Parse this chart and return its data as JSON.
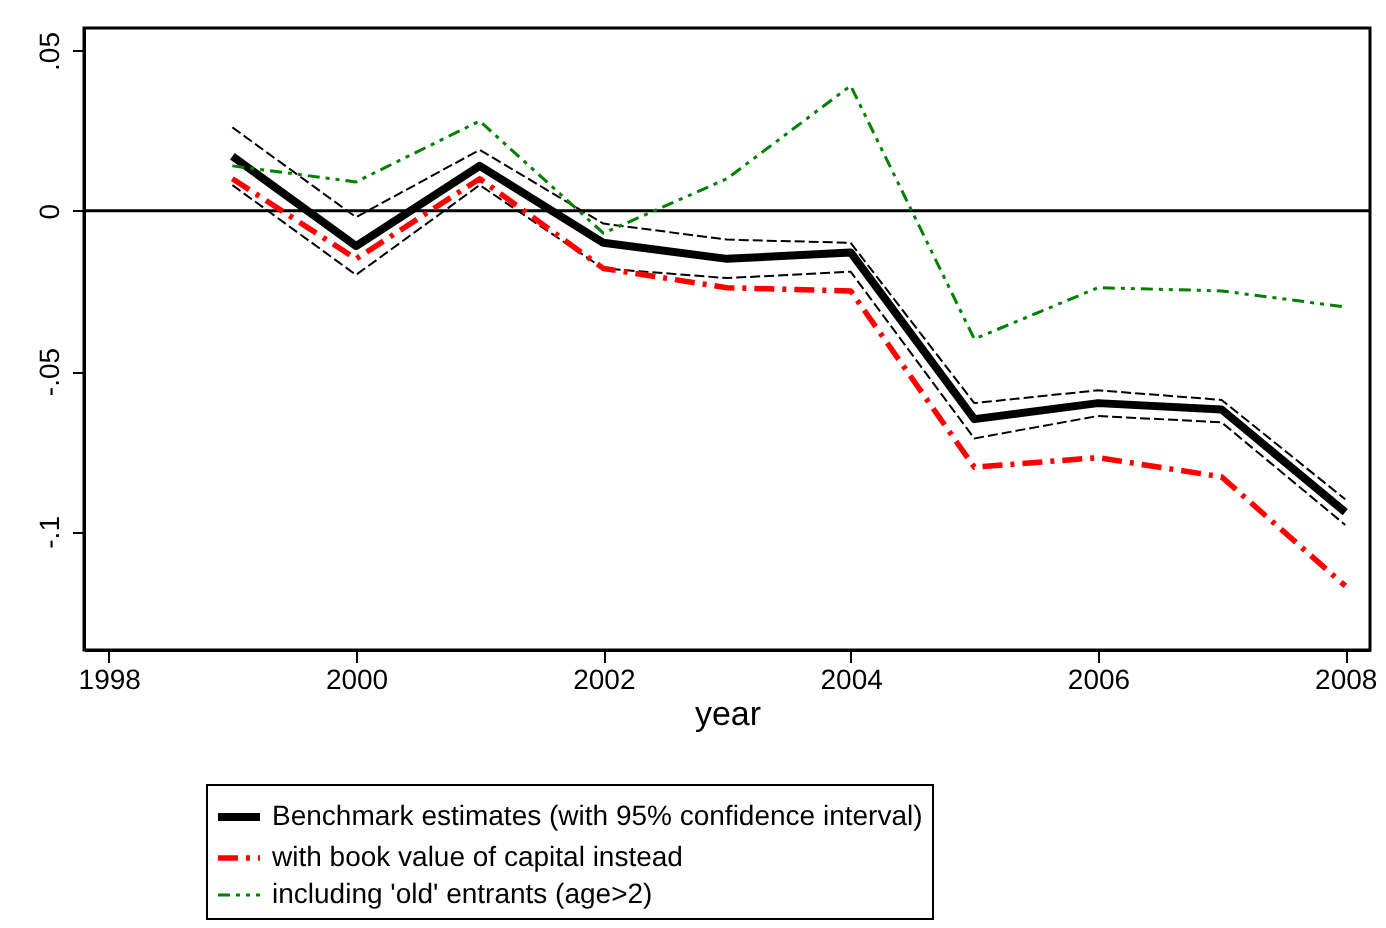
{
  "chart_data": {
    "type": "line",
    "xlabel": "year",
    "x": [
      1999,
      2000,
      2001,
      2002,
      2003,
      2004,
      2005,
      2006,
      2007,
      2008
    ],
    "xlim": [
      1997.8,
      2008.2
    ],
    "xticks": [
      1998,
      2000,
      2002,
      2004,
      2006,
      2008
    ],
    "ylim": [
      -0.137,
      0.057
    ],
    "yticks": [
      {
        "value": 0.05,
        "label": ".05"
      },
      0,
      {
        "value": -0.05,
        "label": "-.05"
      },
      {
        "value": -0.1,
        "label": "-.1"
      }
    ],
    "grid": false,
    "legend": "bottom",
    "marker": "none",
    "ref_lines": [
      {
        "axis": "y",
        "value": 0,
        "color": "#000000"
      }
    ],
    "series": [
      {
        "name": "Benchmark estimates (with 95% confidence interval)",
        "color": "#000000",
        "line_style": "solid",
        "values": [
          0.017,
          -0.011,
          0.014,
          -0.01,
          -0.015,
          -0.013,
          -0.065,
          -0.06,
          -0.062,
          -0.094
        ]
      },
      {
        "name": "with book value of capital instead",
        "color": "#ff0000",
        "line_style": "dashed",
        "values": [
          0.01,
          -0.015,
          0.01,
          -0.018,
          -0.024,
          -0.025,
          -0.08,
          -0.077,
          -0.083,
          -0.117
        ]
      },
      {
        "name": "including 'old' entrants (age>2)",
        "color": "#008000",
        "line_style": "dotted",
        "values": [
          0.014,
          0.009,
          0.028,
          -0.007,
          0.01,
          0.039,
          -0.04,
          -0.024,
          -0.025,
          -0.03
        ]
      },
      {
        "color": "#000000",
        "line_style": "dashed",
        "values": [
          0.026,
          -0.002,
          0.019,
          -0.004,
          -0.009,
          -0.01,
          -0.06,
          -0.056,
          -0.059,
          -0.09
        ]
      },
      {
        "color": "#000000",
        "line_style": "dashed",
        "values": [
          0.008,
          -0.02,
          0.008,
          -0.018,
          -0.021,
          -0.019,
          -0.071,
          -0.064,
          -0.066,
          -0.098
        ]
      }
    ]
  }
}
